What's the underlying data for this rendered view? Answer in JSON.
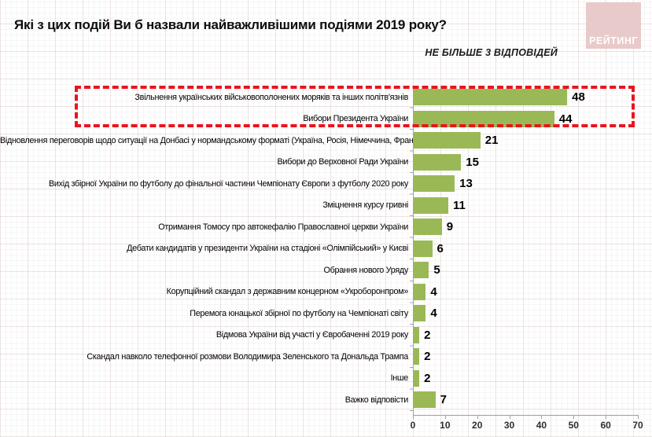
{
  "header": {
    "title": "Які з цих подій Ви б назвали найважливішими подіями 2019 року?",
    "note": "НЕ БІЛЬШЕ 3 ВІДПОВІДЕЙ",
    "logo_text": "РЕЙТИНГ"
  },
  "colors": {
    "bar": "#9ab956",
    "highlight_box": "#e9141f",
    "logo_bg": "#e8caca",
    "axis": "#a3a3a3"
  },
  "chart_data": {
    "type": "bar",
    "orientation": "horizontal",
    "title": "Які з цих подій Ви б назвали найважливішими подіями 2019 року?",
    "subtitle": "НЕ БІЛЬШЕ 3 ВІДПОВІДЕЙ",
    "categories": [
      "Звільнення українських військовополонених моряків та інших політв'язнів",
      "Вибори Президента України",
      "Відновлення переговорів щодо ситуації на Донбасі у нормандському форматі (Україна, Росія, Німеччина, Франція)",
      "Вибори до Верховної Ради України",
      "Вихід збірної України по футболу до фінальної частини Чемпіонату Європи з футболу 2020 року",
      "Зміцнення курсу гривні",
      "Отримання Томосу про автокефалію Православної церкви України",
      "Дебати кандидатів у президенти України на стадіоні «Олімпійський» у Києві",
      "Обрання нового Уряду",
      "Корупційний скандал з державним концерном «Укроборонпром»",
      "Перемога юнацької збірної по футболу на Чемпіонаті світу",
      "Відмова України від участі у Євробаченні 2019 року",
      "Скандал навколо телефонної розмови Володимира Зеленського та Дональда Трампа",
      "Інше",
      "Важко відповісти"
    ],
    "values": [
      48,
      44,
      21,
      15,
      13,
      11,
      9,
      6,
      5,
      4,
      4,
      2,
      2,
      2,
      7
    ],
    "xlim": [
      0,
      70
    ],
    "xticks": [
      0,
      10,
      20,
      30,
      40,
      50,
      60,
      70
    ],
    "highlighted_rows": [
      0,
      1
    ],
    "value_labels": true,
    "grid": true,
    "legend": "none"
  }
}
